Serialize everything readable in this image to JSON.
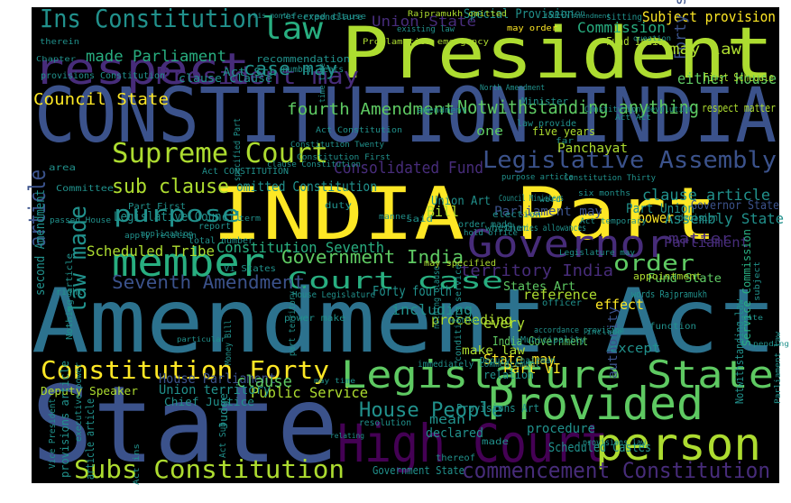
{
  "wordcloud": {
    "background_color": "#000000",
    "page_background_color": "#ffffff",
    "palette": "viridis",
    "palette_colors": {
      "dark_purple": "#440154",
      "purple": "#472c7a",
      "indigo": "#3b528b",
      "blue": "#2c728e",
      "teal": "#21918c",
      "green_teal": "#28ae80",
      "green": "#5ec962",
      "lime": "#addc30",
      "yellow": "#fde725"
    },
    "words": [
      {
        "text": "Amendment Act",
        "color": "#2c728e"
      },
      {
        "text": "State",
        "color": "#3b528b"
      },
      {
        "text": "CONSTITUTION INDIA",
        "color": "#3b528b"
      },
      {
        "text": "INDIA Part",
        "color": "#fde725"
      },
      {
        "text": "President",
        "color": "#addc30"
      },
      {
        "text": "Legislature State",
        "color": "#5ec962"
      },
      {
        "text": "High Court",
        "color": "#440154"
      },
      {
        "text": "Provided",
        "color": "#5ec962"
      },
      {
        "text": "person",
        "color": "#addc30"
      },
      {
        "text": "Governor",
        "color": "#472c7a"
      },
      {
        "text": "respect",
        "color": "#472c7a"
      },
      {
        "text": "member",
        "color": "#28ae80"
      },
      {
        "text": "Legislative Assembly",
        "color": "#3b528b"
      },
      {
        "text": "Supreme Court",
        "color": "#addc30"
      },
      {
        "text": "Subs Constitution",
        "color": "#addc30"
      },
      {
        "text": "Constitution Forty",
        "color": "#fde725"
      },
      {
        "text": "commencement Constitution",
        "color": "#472c7a"
      },
      {
        "text": "Ins Constitution",
        "color": "#21918c"
      },
      {
        "text": "President may",
        "color": "#472c7a"
      },
      {
        "text": "Court case",
        "color": "#28ae80"
      },
      {
        "text": "purpose",
        "color": "#21918c"
      },
      {
        "text": "law",
        "color": "#28ae80"
      },
      {
        "text": "case may",
        "color": "#21918c"
      },
      {
        "text": "House People",
        "color": "#21918c"
      },
      {
        "text": "Seventh Amendment",
        "color": "#3b528b"
      },
      {
        "text": "Government India",
        "color": "#5ec962"
      },
      {
        "text": "order",
        "color": "#5ec962"
      },
      {
        "text": "Notwithstanding anything",
        "color": "#5ec962"
      },
      {
        "text": "fourth Amendment",
        "color": "#5ec962"
      },
      {
        "text": "Consolidated Fund",
        "color": "#472c7a"
      },
      {
        "text": "territory India",
        "color": "#472c7a"
      },
      {
        "text": "sub clause",
        "color": "#addc30"
      },
      {
        "text": "article",
        "color": "#3b528b"
      },
      {
        "text": "law made",
        "color": "#21918c"
      },
      {
        "text": "Constitution Seventh",
        "color": "#28ae80"
      },
      {
        "text": "Council State",
        "color": "#fde725"
      },
      {
        "text": "made Parliament",
        "color": "#28ae80"
      },
      {
        "text": "Subject provision",
        "color": "#fde725"
      },
      {
        "text": "Forty second",
        "color": "#3b528b"
      },
      {
        "text": "Union State",
        "color": "#472c7a"
      },
      {
        "text": "Commission",
        "color": "#28ae80"
      },
      {
        "text": "Scheduled Tribe",
        "color": "#addc30"
      },
      {
        "text": "Legislative Council",
        "color": "#21918c"
      },
      {
        "text": "clause article",
        "color": "#21918c"
      },
      {
        "text": "Assembly State",
        "color": "#21918c"
      },
      {
        "text": "power",
        "color": "#fde725"
      },
      {
        "text": "matter",
        "color": "#472c7a"
      },
      {
        "text": "may law",
        "color": "#addc30"
      },
      {
        "text": "either House",
        "color": "#5ec962"
      },
      {
        "text": "Parliament",
        "color": "#472c7a"
      },
      {
        "text": "Bill",
        "color": "#addc30"
      },
      {
        "text": "Public Service",
        "color": "#addc30"
      },
      {
        "text": "House Parliament",
        "color": "#3b528b"
      },
      {
        "text": "clause",
        "color": "#5ec962"
      },
      {
        "text": "including",
        "color": "#21918c"
      },
      {
        "text": "every",
        "color": "#addc30"
      },
      {
        "text": "State may",
        "color": "#fde725"
      },
      {
        "text": "Part VI",
        "color": "#fde725"
      },
      {
        "text": "Panchayat",
        "color": "#addc30"
      },
      {
        "text": "five years",
        "color": "#addc30"
      },
      {
        "text": "one",
        "color": "#5ec962"
      },
      {
        "text": "Union territory",
        "color": "#21918c"
      },
      {
        "text": "Parliament may",
        "color": "#3b528b"
      },
      {
        "text": "Special Provision",
        "color": "#21918c"
      },
      {
        "text": "Union Art",
        "color": "#21918c"
      },
      {
        "text": "Part Union",
        "color": "#21918c"
      },
      {
        "text": "India Government",
        "color": "#5ec962"
      },
      {
        "text": "States Art",
        "color": "#5ec962"
      },
      {
        "text": "proceeding",
        "color": "#addc30"
      },
      {
        "text": "reference",
        "color": "#addc30"
      },
      {
        "text": "effect",
        "color": "#fde725"
      },
      {
        "text": "Fund State",
        "color": "#5ec962"
      },
      {
        "text": "except",
        "color": "#21918c"
      },
      {
        "text": "authority",
        "color": "#3b528b"
      },
      {
        "text": "Notwithstanding law",
        "color": "#21918c"
      },
      {
        "text": "Service Commission",
        "color": "#28ae80"
      },
      {
        "text": "Scheduled Castes",
        "color": "#21918c"
      },
      {
        "text": "mean",
        "color": "#21918c"
      },
      {
        "text": "declared",
        "color": "#21918c"
      },
      {
        "text": "procedure",
        "color": "#21918c"
      },
      {
        "text": "Government State",
        "color": "#21918c"
      },
      {
        "text": "make law",
        "color": "#addc30"
      },
      {
        "text": "Money Bill",
        "color": "#21918c"
      },
      {
        "text": "Judge",
        "color": "#21918c"
      },
      {
        "text": "Act Sub",
        "color": "#21918c"
      },
      {
        "text": "Deputy Speaker",
        "color": "#addc30"
      },
      {
        "text": "provisions Constitution",
        "color": "#21918c"
      },
      {
        "text": "clause clause",
        "color": "#21918c"
      },
      {
        "text": "Act Sch",
        "color": "#21918c"
      },
      {
        "text": "recommendation",
        "color": "#21918c"
      },
      {
        "text": "number seats",
        "color": "#21918c"
      },
      {
        "text": "Fund India",
        "color": "#addc30"
      },
      {
        "text": "First Schedule",
        "color": "#addc30"
      },
      {
        "text": "respect matter",
        "color": "#addc30"
      },
      {
        "text": "omitted Constitution",
        "color": "#21918c"
      },
      {
        "text": "second Amendment",
        "color": "#21918c"
      },
      {
        "text": "Chief Justice",
        "color": "#21918c"
      },
      {
        "text": "Vice President",
        "color": "#21918c"
      },
      {
        "text": "provisions article",
        "color": "#21918c"
      },
      {
        "text": "executive power",
        "color": "#21918c"
      },
      {
        "text": "article article",
        "color": "#21918c"
      },
      {
        "text": "Nothing article",
        "color": "#21918c"
      },
      {
        "text": "Proclamation emergency",
        "color": "#addc30"
      },
      {
        "text": "Rajpramukh omitted",
        "color": "#addc30"
      },
      {
        "text": "referred clause",
        "color": "#21918c"
      },
      {
        "text": "sitting",
        "color": "#21918c"
      },
      {
        "text": "decision",
        "color": "#21918c"
      },
      {
        "text": "Governor State",
        "color": "#3b528b"
      },
      {
        "text": "election",
        "color": "#21918c"
      },
      {
        "text": "appointment",
        "color": "#addc30"
      },
      {
        "text": "Minister",
        "color": "#21918c"
      },
      {
        "text": "Council Ministers",
        "color": "#21918c"
      },
      {
        "text": "words Rajpramukh",
        "color": "#21918c"
      },
      {
        "text": "Deputy Chairman",
        "color": "#21918c"
      },
      {
        "text": "salaries allowances",
        "color": "#21918c"
      },
      {
        "text": "conditions service",
        "color": "#21918c"
      },
      {
        "text": "nothing clause",
        "color": "#21918c"
      },
      {
        "text": "part territory",
        "color": "#21918c"
      },
      {
        "text": "House Legislature",
        "color": "#21918c"
      },
      {
        "text": "Forty fourth",
        "color": "#21918c"
      },
      {
        "text": "Vi States",
        "color": "#21918c"
      },
      {
        "text": "power make",
        "color": "#21918c"
      },
      {
        "text": "may specified",
        "color": "#addc30"
      },
      {
        "text": "order made",
        "color": "#21918c"
      },
      {
        "text": "whether",
        "color": "#21918c"
      },
      {
        "text": "said",
        "color": "#21918c"
      },
      {
        "text": "duty",
        "color": "#21918c"
      },
      {
        "text": "Act CONSTITUTION",
        "color": "#21918c"
      },
      {
        "text": "Part First",
        "color": "#21918c"
      },
      {
        "text": "Committee",
        "color": "#21918c"
      },
      {
        "text": "area",
        "color": "#21918c"
      },
      {
        "text": "specified Part",
        "color": "#21918c"
      },
      {
        "text": "total number",
        "color": "#21918c"
      },
      {
        "text": "report",
        "color": "#21918c"
      },
      {
        "text": "passed House",
        "color": "#21918c"
      },
      {
        "text": "right",
        "color": "#21918c"
      },
      {
        "text": "immediately commencement",
        "color": "#21918c"
      },
      {
        "text": "resolution",
        "color": "#21918c"
      },
      {
        "text": "thereof",
        "color": "#21918c"
      },
      {
        "text": "expenditure",
        "color": "#21918c"
      },
      {
        "text": "therein",
        "color": "#21918c"
      },
      {
        "text": "Chapter",
        "color": "#21918c"
      },
      {
        "text": "law provide",
        "color": "#21918c"
      },
      {
        "text": "Provisions Art",
        "color": "#21918c"
      },
      {
        "text": "include",
        "color": "#21918c"
      },
      {
        "text": "function",
        "color": "#21918c"
      },
      {
        "text": "provisions law",
        "color": "#21918c"
      },
      {
        "text": "made",
        "color": "#21918c"
      },
      {
        "text": "far",
        "color": "#21918c"
      },
      {
        "text": "officer",
        "color": "#21918c"
      },
      {
        "text": "Municipality",
        "color": "#21918c"
      },
      {
        "text": "time time",
        "color": "#21918c"
      },
      {
        "text": "relation",
        "color": "#21918c"
      },
      {
        "text": "Parliament law",
        "color": "#21918c"
      },
      {
        "text": "subject",
        "color": "#21918c"
      },
      {
        "text": "existing law",
        "color": "#21918c"
      },
      {
        "text": "may order",
        "color": "#fde725"
      },
      {
        "text": "hold office",
        "color": "#21918c"
      },
      {
        "text": "accordance provision",
        "color": "#21918c"
      },
      {
        "text": "Act ins",
        "color": "#21918c"
      },
      {
        "text": "particular",
        "color": "#21918c"
      },
      {
        "text": "either",
        "color": "#21918c"
      },
      {
        "text": "date",
        "color": "#21918c"
      },
      {
        "text": "pending",
        "color": "#21918c"
      },
      {
        "text": "may time",
        "color": "#21918c"
      },
      {
        "text": "relating",
        "color": "#21918c"
      },
      {
        "text": "opinion",
        "color": "#21918c"
      },
      {
        "text": "question",
        "color": "#21918c"
      },
      {
        "text": "fourth Amendment",
        "color": "#21918c"
      },
      {
        "text": "apply relation",
        "color": "#21918c"
      },
      {
        "text": "application",
        "color": "#21918c"
      },
      {
        "text": "term",
        "color": "#21918c"
      },
      {
        "text": "Act temporary",
        "color": "#21918c"
      },
      {
        "text": "North Amendment",
        "color": "#21918c"
      },
      {
        "text": "Constitution Thirty",
        "color": "#21918c"
      },
      {
        "text": "Constitution devolution",
        "color": "#21918c"
      },
      {
        "text": "six months",
        "color": "#21918c"
      },
      {
        "text": "purpose article",
        "color": "#21918c"
      },
      {
        "text": "word",
        "color": "#21918c"
      },
      {
        "text": "Act Act",
        "color": "#21918c"
      },
      {
        "text": "Constitution Twenty",
        "color": "#21918c"
      },
      {
        "text": "Constitution First",
        "color": "#21918c"
      },
      {
        "text": "manner",
        "color": "#21918c"
      },
      {
        "text": "amendment",
        "color": "#21918c"
      },
      {
        "text": "his months",
        "color": "#21918c"
      },
      {
        "text": "clause Constitution",
        "color": "#21918c"
      },
      {
        "text": "Legislature may",
        "color": "#21918c"
      },
      {
        "text": "Act Constitution",
        "color": "#21918c"
      }
    ]
  }
}
